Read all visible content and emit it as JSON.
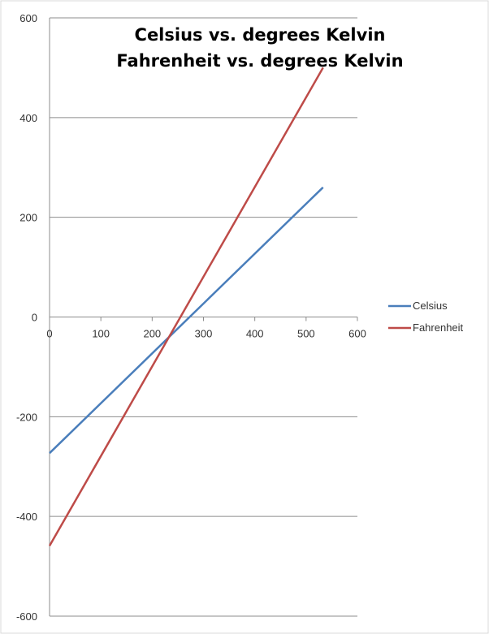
{
  "chart_data": {
    "type": "line",
    "title_lines": [
      "Celsius vs. degrees Kelvin",
      "Fahrenheit vs. degrees Kelvin"
    ],
    "xlabel": "",
    "ylabel": "",
    "xlim": [
      0,
      600
    ],
    "ylim": [
      -600,
      600
    ],
    "x_ticks": [
      0,
      100,
      200,
      300,
      400,
      500,
      600
    ],
    "y_ticks": [
      -600,
      -400,
      -200,
      0,
      200,
      400,
      600
    ],
    "grid": "horizontal major gridlines",
    "legend_position": "right",
    "series": [
      {
        "name": "Celsius",
        "color": "#4a7ebb",
        "x": [
          0,
          533
        ],
        "y": [
          -273,
          260
        ]
      },
      {
        "name": "Fahrenheit",
        "color": "#be4b48",
        "x": [
          0,
          533
        ],
        "y": [
          -459,
          500
        ]
      }
    ]
  }
}
